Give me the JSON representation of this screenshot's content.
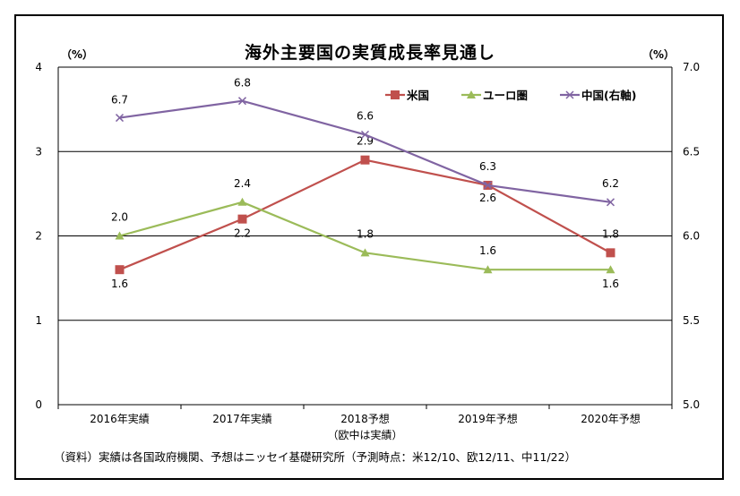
{
  "chart_data": {
    "type": "line",
    "title": "海外主要国の実質成長率見通し",
    "y_unit_left": "（%）",
    "y_unit_right": "（%）",
    "categories": [
      "2016年実績",
      "2017年実績",
      "2018予想",
      "2019年予想",
      "2020年予想"
    ],
    "category_note": "（欧中は実績）",
    "ylim_left": [
      0,
      4
    ],
    "yticks_left": [
      "0",
      "1",
      "2",
      "3",
      "4"
    ],
    "ylim_right": [
      5.0,
      7.0
    ],
    "yticks_right": [
      "5.0",
      "5.5",
      "6.0",
      "6.5",
      "7.0"
    ],
    "grid": true,
    "legend_position": "top-right",
    "series": [
      {
        "name": "米国",
        "axis": "left",
        "color": "#c0504d",
        "marker": "square",
        "values": [
          1.6,
          2.2,
          2.9,
          2.6,
          1.8
        ],
        "labels": [
          "1.6",
          "2.2",
          "2.9",
          "2.6",
          "1.8"
        ]
      },
      {
        "name": "ユーロ圏",
        "axis": "left",
        "color": "#9bbb59",
        "marker": "triangle",
        "values": [
          2.0,
          2.4,
          1.8,
          1.6,
          1.6
        ],
        "labels": [
          "2.0",
          "2.4",
          "1.8",
          "1.6",
          "1.6"
        ]
      },
      {
        "name": "中国(右軸)",
        "axis": "right",
        "color": "#8064a2",
        "marker": "x",
        "values": [
          6.7,
          6.8,
          6.6,
          6.3,
          6.2
        ],
        "labels": [
          "6.7",
          "6.8",
          "6.6",
          "6.3",
          "6.2"
        ]
      }
    ],
    "source_note": "（資料）実績は各国政府機関、予想はニッセイ基礎研究所（予測時点：米12/10、欧12/11、中11/22）"
  }
}
